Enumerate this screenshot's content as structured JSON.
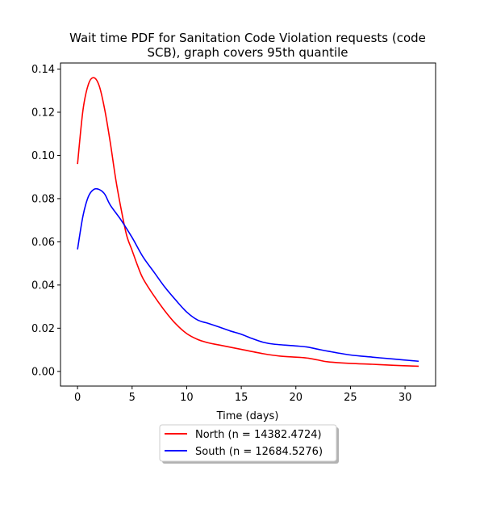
{
  "chart_data": {
    "type": "line",
    "title_line1": "Wait time PDF for Sanitation Code Violation  requests (code",
    "title_line2": "SCB), graph covers 95th quantile",
    "xlabel": "Time (days)",
    "ylabel": "",
    "xlim": [
      -1.56,
      32.8
    ],
    "ylim": [
      -0.0068,
      0.1428
    ],
    "xticks": [
      0,
      5,
      10,
      15,
      20,
      25,
      30
    ],
    "xtick_labels": [
      "0",
      "5",
      "10",
      "15",
      "20",
      "25",
      "30"
    ],
    "yticks": [
      0.0,
      0.02,
      0.04,
      0.06,
      0.08,
      0.1,
      0.12,
      0.14
    ],
    "ytick_labels": [
      "0.00",
      "0.02",
      "0.04",
      "0.06",
      "0.08",
      "0.10",
      "0.12",
      "0.14"
    ],
    "grid": false,
    "legend_position": "below-center",
    "series": [
      {
        "name": "North (n = 14382.4724)",
        "color": "#ff0000",
        "x": [
          0,
          0.5,
          1.0,
          1.5,
          2.0,
          2.5,
          3.0,
          3.5,
          4.0,
          4.5,
          5.0,
          5.5,
          6.0,
          7.0,
          8.0,
          9.0,
          10.0,
          11.0,
          12.0,
          13.0,
          15.0,
          17.0,
          18.5,
          20.0,
          21.0,
          22.0,
          23.0,
          25.0,
          27.0,
          29.0,
          31.25
        ],
        "y": [
          0.096,
          0.121,
          0.133,
          0.136,
          0.132,
          0.121,
          0.106,
          0.089,
          0.075,
          0.063,
          0.056,
          0.049,
          0.043,
          0.035,
          0.028,
          0.022,
          0.0175,
          0.0148,
          0.0132,
          0.0122,
          0.0102,
          0.0082,
          0.0071,
          0.0066,
          0.0062,
          0.0053,
          0.0044,
          0.0037,
          0.0033,
          0.0028,
          0.0024
        ]
      },
      {
        "name": "South (n = 12684.5276)",
        "color": "#0000ff",
        "x": [
          0,
          0.5,
          1.0,
          1.5,
          2.0,
          2.5,
          3.0,
          4.0,
          5.0,
          6.0,
          7.0,
          8.0,
          9.0,
          10.0,
          11.0,
          12.0,
          13.0,
          14.0,
          15.0,
          16.0,
          17.0,
          18.0,
          20.0,
          21.0,
          22.0,
          23.0,
          25.0,
          27.0,
          29.0,
          31.25
        ],
        "y": [
          0.0565,
          0.072,
          0.081,
          0.0843,
          0.0842,
          0.082,
          0.077,
          0.07,
          0.062,
          0.053,
          0.046,
          0.039,
          0.033,
          0.0275,
          0.0238,
          0.0222,
          0.0205,
          0.0187,
          0.0172,
          0.0152,
          0.0135,
          0.0126,
          0.0118,
          0.0113,
          0.0103,
          0.0093,
          0.0076,
          0.0066,
          0.0057,
          0.0047
        ]
      }
    ]
  }
}
